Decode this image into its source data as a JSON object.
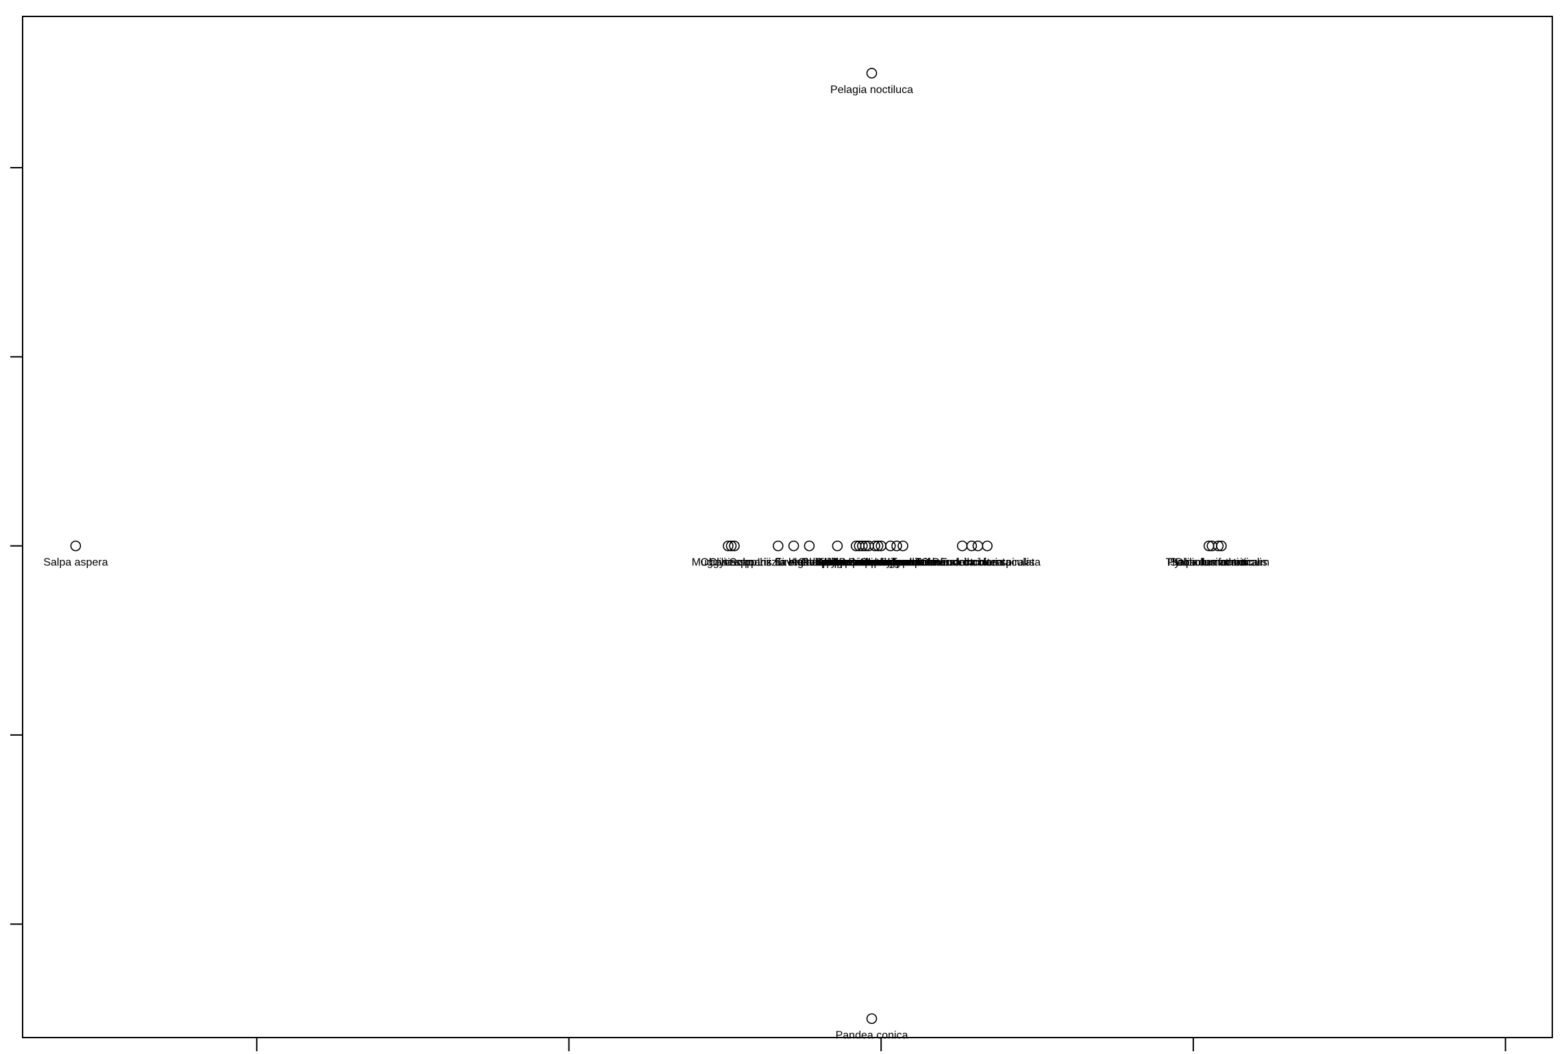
{
  "chart_data": {
    "type": "scatter",
    "title": "",
    "xlabel": "",
    "ylabel": "",
    "xlim": [
      -2.25,
      2.65
    ],
    "ylim": [
      -1.3,
      1.4
    ],
    "xticks": [
      -1.5,
      -0.5,
      0.5,
      1.5,
      2.5
    ],
    "yticks": [
      -1.0,
      -0.5,
      0.0,
      0.5,
      1.0
    ],
    "show_tick_labels": false,
    "grid": false,
    "legend": "none",
    "marker": "open-circle",
    "colors": {
      "axis": "#000000",
      "marker": "#000000",
      "text": "#000000",
      "background": "#ffffff"
    },
    "points": [
      {
        "x": -2.08,
        "y": 0.0,
        "label": "Salpa aspera"
      },
      {
        "x": 0.47,
        "y": 1.25,
        "label": "Pelagia noctiluca"
      },
      {
        "x": 0.47,
        "y": -1.25,
        "label": "Pandea conica"
      },
      {
        "x": 0.01,
        "y": 0.0,
        "label": "Obelia spp."
      },
      {
        "x": 0.02,
        "y": 0.0,
        "label": "Muggiaea kochii"
      },
      {
        "x": 0.03,
        "y": 0.0,
        "label": "Clytia spp."
      },
      {
        "x": 0.17,
        "y": 0.0,
        "label": "Solmaris flavescens"
      },
      {
        "x": 0.22,
        "y": 0.0,
        "label": "Lizzia blondina"
      },
      {
        "x": 0.27,
        "y": 0.0,
        "label": "Eirene viridula"
      },
      {
        "x": 0.36,
        "y": 0.0,
        "label": "Aglaura hemistoma"
      },
      {
        "x": 0.42,
        "y": 0.0,
        "label": "Rhopalonema velatum"
      },
      {
        "x": 0.43,
        "y": 0.0,
        "label": "Liriope tetraphylla"
      },
      {
        "x": 0.44,
        "y": 0.0,
        "label": "Chelophyes appendiculata"
      },
      {
        "x": 0.45,
        "y": 0.0,
        "label": "Abylopsis tetragona"
      },
      {
        "x": 0.46,
        "y": 0.0,
        "label": "Lensia subtilis"
      },
      {
        "x": 0.48,
        "y": 0.0,
        "label": "Sphaeronectes koellikeri"
      },
      {
        "x": 0.49,
        "y": 0.0,
        "label": "Hippopodius hippopus"
      },
      {
        "x": 0.5,
        "y": 0.0,
        "label": "Bassia bassensis"
      },
      {
        "x": 0.53,
        "y": 0.0,
        "label": "Leuckartiara octona"
      },
      {
        "x": 0.55,
        "y": 0.0,
        "label": "Podocoryna minima"
      },
      {
        "x": 0.57,
        "y": 0.0,
        "label": "Sarsia gemmifera"
      },
      {
        "x": 0.76,
        "y": 0.0,
        "label": "Cunina octonaria"
      },
      {
        "x": 0.79,
        "y": 0.0,
        "label": "Persa incolorata"
      },
      {
        "x": 0.81,
        "y": 0.0,
        "label": "Solmundella bitentaculata"
      },
      {
        "x": 0.84,
        "y": 0.0,
        "label": "Eudoxoides spiralis"
      },
      {
        "x": 1.55,
        "y": 0.0,
        "label": "Salpa fusiformis"
      },
      {
        "x": 1.56,
        "y": 0.0,
        "label": "Thalia democratica"
      },
      {
        "x": 1.58,
        "y": 0.0,
        "label": "Pyrosoma atlanticum"
      },
      {
        "x": 1.59,
        "y": 0.0,
        "label": "Doliolum nationalis"
      }
    ]
  }
}
